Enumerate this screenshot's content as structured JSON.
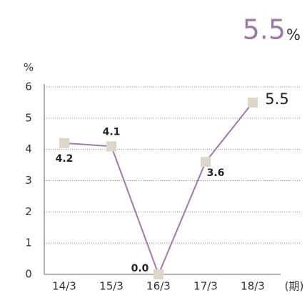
{
  "chart_data": {
    "type": "line",
    "headline": {
      "value": "5.5",
      "unit": "%"
    },
    "y_axis_label": "%",
    "x_axis_label": "(期)",
    "categories": [
      "14/3",
      "15/3",
      "16/3",
      "17/3",
      "18/3"
    ],
    "series": [
      {
        "color": "#9e7bab",
        "marker_color": "#ddd6cb",
        "values": [
          4.2,
          4.1,
          0.0,
          3.6,
          5.5
        ],
        "value_labels": [
          "4.2",
          "4.1",
          "0.0",
          "3.6",
          "5.5"
        ]
      }
    ],
    "ylim": [
      0,
      6
    ],
    "yticks": [
      0,
      1,
      2,
      3,
      4,
      5,
      6
    ],
    "grid": true
  }
}
